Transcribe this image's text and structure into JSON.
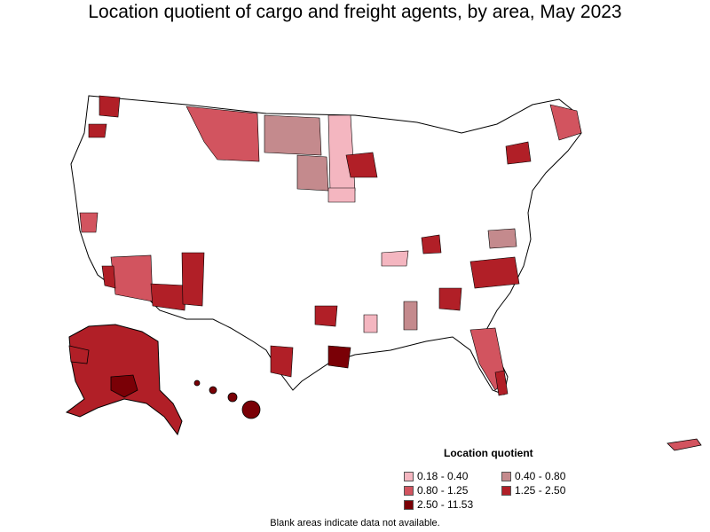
{
  "title": "Location quotient of cargo and freight agents, by area, May 2023",
  "legend": {
    "title": "Location quotient",
    "items": [
      {
        "label": "0.18 - 0.40",
        "color": "#f4b6c0"
      },
      {
        "label": "0.40 - 0.80",
        "color": "#c48a8d"
      },
      {
        "label": "0.80 - 1.25",
        "color": "#d2545f"
      },
      {
        "label": "1.25 - 2.50",
        "color": "#b11f27"
      },
      {
        "label": "2.50 - 11.53",
        "color": "#7a0006"
      }
    ]
  },
  "footnote": "Blank areas indicate data not available.",
  "colors": {
    "border": "#000000",
    "blank": "#ffffff"
  }
}
